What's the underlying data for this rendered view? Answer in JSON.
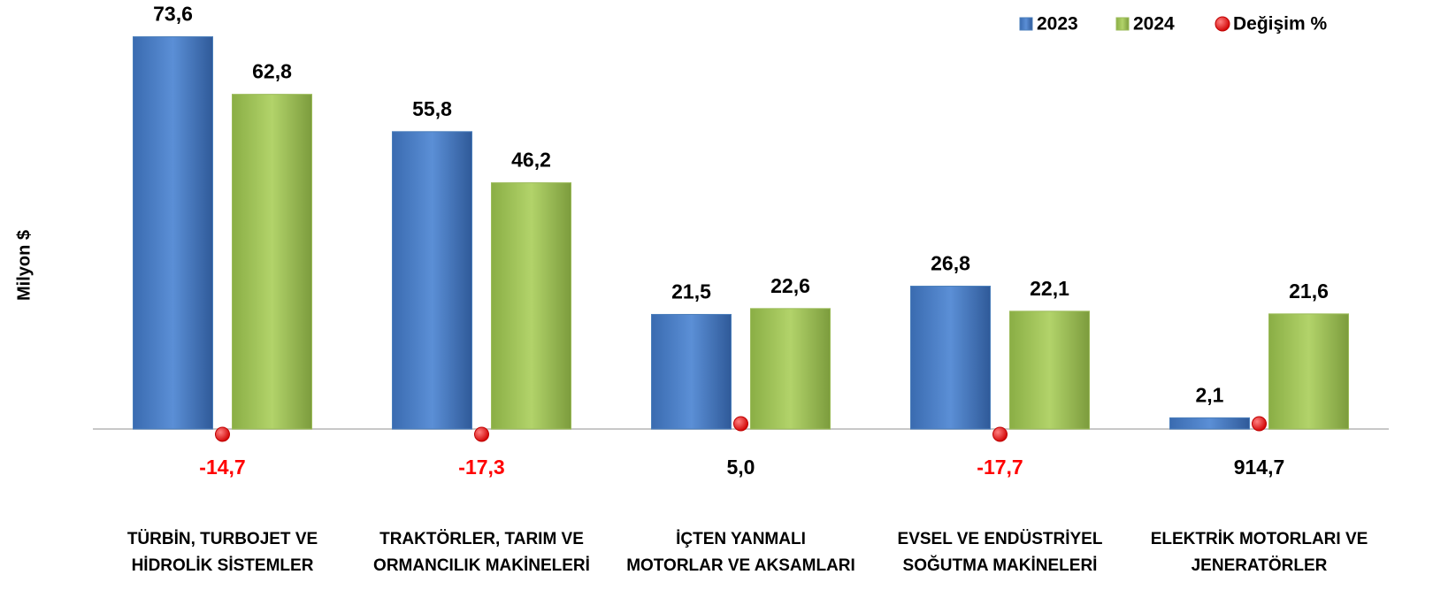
{
  "chart_data": {
    "type": "bar",
    "y_label": "Milyon $",
    "categories": [
      [
        "TÜRBİN, TURBOJET VE",
        "HİDROLİK SİSTEMLER"
      ],
      [
        "TRAKTÖRLER, TARIM VE",
        "ORMANCILIK MAKİNELERİ"
      ],
      [
        "İÇTEN YANMALI",
        "MOTORLAR VE AKSAMLARI"
      ],
      [
        "EVSEL VE ENDÜSTRİYEL",
        "SOĞUTMA MAKİNELERİ"
      ],
      [
        "ELEKTRİK MOTORLARI VE",
        "JENERATÖRLER"
      ]
    ],
    "series": [
      {
        "name": "2023",
        "color": "#4a7ebb",
        "values": [
          73.6,
          55.8,
          21.5,
          26.8,
          2.1
        ],
        "value_labels": [
          "73,6",
          "55,8",
          "21,5",
          "26,8",
          "2,1"
        ]
      },
      {
        "name": "2024",
        "color": "#9bbb59",
        "values": [
          62.8,
          46.2,
          22.6,
          22.1,
          21.6
        ],
        "value_labels": [
          "62,8",
          "46,2",
          "22,6",
          "22,1",
          "21,6"
        ]
      }
    ],
    "change": {
      "name": "Değişim %",
      "color": "#ff0000",
      "values": [
        -14.7,
        -17.3,
        5.0,
        -17.7,
        914.7
      ],
      "value_labels": [
        "-14,7",
        "-17,3",
        "5,0",
        "-17,7",
        "914,7"
      ]
    },
    "ylim": [
      0,
      80
    ],
    "legend": "top-right"
  }
}
